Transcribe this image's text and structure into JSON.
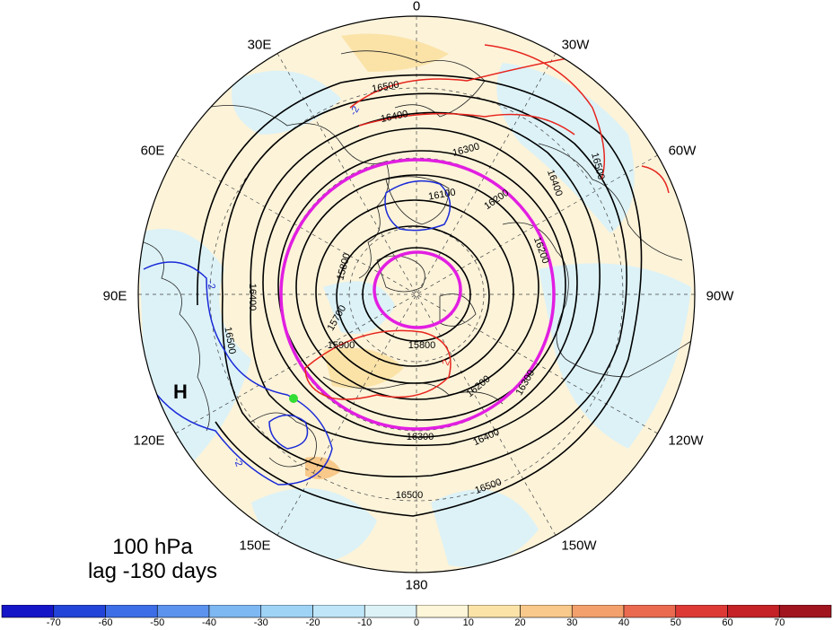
{
  "map": {
    "longitude_labels": [
      {
        "id": "lon-0",
        "text": "0"
      },
      {
        "id": "lon-30e",
        "text": "30E"
      },
      {
        "id": "lon-30w",
        "text": "30W"
      },
      {
        "id": "lon-60e",
        "text": "60E"
      },
      {
        "id": "lon-60w",
        "text": "60W"
      },
      {
        "id": "lon-90e",
        "text": "90E"
      },
      {
        "id": "lon-90w",
        "text": "90W"
      },
      {
        "id": "lon-120e",
        "text": "120E"
      },
      {
        "id": "lon-120w",
        "text": "120W"
      },
      {
        "id": "lon-150e",
        "text": "150E"
      },
      {
        "id": "lon-150w",
        "text": "150W"
      },
      {
        "id": "lon-180",
        "text": "180"
      }
    ],
    "contour_labels": [
      "16500",
      "16400",
      "16300",
      "16200",
      "16100",
      "15900",
      "15800",
      "15700",
      "16300",
      "16200",
      "16400",
      "16500",
      "16500",
      "16400",
      "16500",
      "16400",
      "16500",
      "16300",
      "16200",
      "15800",
      "-2",
      "-2",
      "-2",
      "2"
    ],
    "high_marker": "H",
    "colors": {
      "geopotential_contour": "#000000",
      "positive_anomaly": "#e8251e",
      "negative_anomaly": "#1a2ad8",
      "highlight_contour": "#e21ee2",
      "marker": "#33dd33",
      "coastline": "#222222"
    }
  },
  "caption": {
    "level": "100 hPa",
    "lag": "lag -180 days"
  },
  "colorbar": {
    "ticks": [
      "-70",
      "-60",
      "-50",
      "-40",
      "-30",
      "-20",
      "-10",
      "0",
      "10",
      "20",
      "30",
      "40",
      "50",
      "60",
      "70"
    ],
    "colors": [
      "#1515c8",
      "#2244d8",
      "#3d6ee8",
      "#5b93ee",
      "#7eb8f2",
      "#9fd3f6",
      "#bfe6f8",
      "#dcf2f7",
      "#fdf6d8",
      "#fbe3a8",
      "#f8c98a",
      "#f3a06c",
      "#ea6a50",
      "#dd3a36",
      "#c42226",
      "#a0151e"
    ]
  }
}
